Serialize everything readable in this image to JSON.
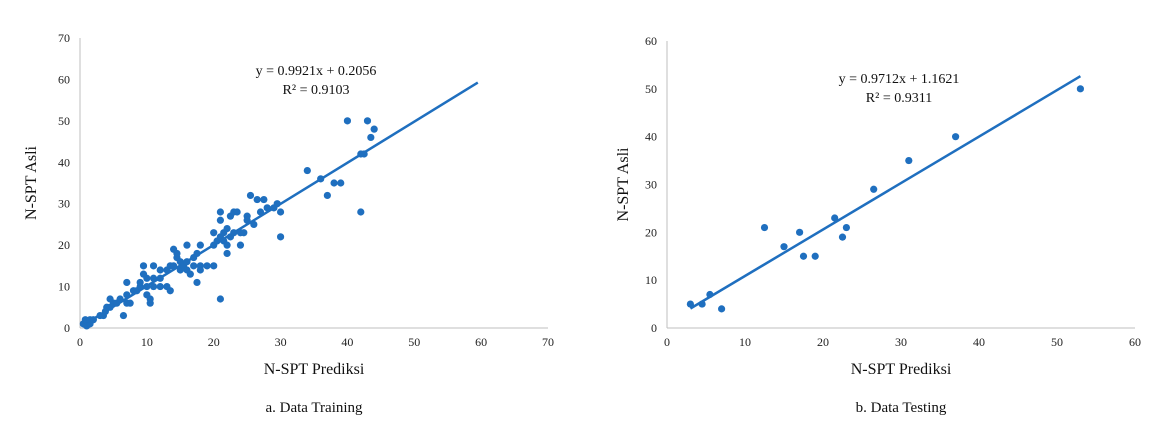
{
  "accent_color": "#1f6fbf",
  "chart_data": [
    {
      "type": "scatter",
      "xlabel": "N-SPT Prediksi",
      "ylabel": "N-SPT Asli",
      "xlim": [
        0,
        70
      ],
      "ylim": [
        0,
        70
      ],
      "xticks": [
        "0",
        "10",
        "20",
        "30",
        "40",
        "50",
        "60",
        "70"
      ],
      "yticks": [
        "0",
        "10",
        "20",
        "30",
        "40",
        "50",
        "60",
        "70"
      ],
      "equation": "y = 0.9921x + 0.2056",
      "r_squared": "R² = 0.9103",
      "caption": "a. Data Training",
      "trendline": {
        "slope": 0.9921,
        "intercept": 0.2056,
        "x_range": [
          0.5,
          59.5
        ]
      },
      "points": [
        [
          0.5,
          1
        ],
        [
          0.8,
          2
        ],
        [
          1,
          0.5
        ],
        [
          1.5,
          1
        ],
        [
          1.5,
          2
        ],
        [
          2,
          2
        ],
        [
          3,
          3
        ],
        [
          3.5,
          3
        ],
        [
          3.8,
          4
        ],
        [
          4,
          5
        ],
        [
          4.5,
          5
        ],
        [
          5,
          6
        ],
        [
          4.5,
          7
        ],
        [
          5.5,
          6
        ],
        [
          6,
          7
        ],
        [
          7,
          6
        ],
        [
          7,
          8
        ],
        [
          6.5,
          3
        ],
        [
          7,
          11
        ],
        [
          7.5,
          6
        ],
        [
          8,
          9
        ],
        [
          8.5,
          9
        ],
        [
          9,
          10
        ],
        [
          9,
          11
        ],
        [
          9.5,
          13
        ],
        [
          9.5,
          15
        ],
        [
          10,
          8
        ],
        [
          10,
          10
        ],
        [
          10,
          12
        ],
        [
          10.5,
          6
        ],
        [
          10.5,
          7
        ],
        [
          11,
          10
        ],
        [
          11,
          12
        ],
        [
          11,
          15
        ],
        [
          12,
          10
        ],
        [
          12,
          12
        ],
        [
          12,
          14
        ],
        [
          13,
          10
        ],
        [
          13,
          14
        ],
        [
          13.5,
          9
        ],
        [
          13.5,
          15
        ],
        [
          14,
          15
        ],
        [
          14,
          19
        ],
        [
          14.5,
          17
        ],
        [
          14.5,
          18
        ],
        [
          15,
          14
        ],
        [
          15,
          16
        ],
        [
          15.5,
          15
        ],
        [
          16,
          14
        ],
        [
          16,
          16
        ],
        [
          16,
          20
        ],
        [
          16.5,
          13
        ],
        [
          17,
          15
        ],
        [
          17,
          17
        ],
        [
          17.5,
          18
        ],
        [
          17.5,
          11
        ],
        [
          18,
          14
        ],
        [
          18,
          15
        ],
        [
          18,
          20
        ],
        [
          19,
          15
        ],
        [
          20,
          15
        ],
        [
          20,
          20
        ],
        [
          20,
          23
        ],
        [
          20.5,
          21
        ],
        [
          21,
          7
        ],
        [
          21,
          22
        ],
        [
          21,
          26
        ],
        [
          21,
          28
        ],
        [
          21.5,
          21
        ],
        [
          21.5,
          23
        ],
        [
          22,
          18
        ],
        [
          22,
          20
        ],
        [
          22,
          24
        ],
        [
          22.5,
          22
        ],
        [
          22.5,
          27
        ],
        [
          23,
          23
        ],
        [
          23,
          28
        ],
        [
          23.5,
          28
        ],
        [
          24,
          20
        ],
        [
          24,
          23
        ],
        [
          24.5,
          23
        ],
        [
          25,
          27
        ],
        [
          25,
          26
        ],
        [
          25.5,
          32
        ],
        [
          26,
          25
        ],
        [
          26.5,
          31
        ],
        [
          27,
          28
        ],
        [
          27.5,
          31
        ],
        [
          28,
          29
        ],
        [
          29,
          29
        ],
        [
          29.5,
          30
        ],
        [
          30,
          28
        ],
        [
          30,
          22
        ],
        [
          34,
          38
        ],
        [
          36,
          36
        ],
        [
          37,
          32
        ],
        [
          38,
          35
        ],
        [
          39,
          35
        ],
        [
          40,
          50
        ],
        [
          42,
          28
        ],
        [
          42,
          42
        ],
        [
          42.5,
          42
        ],
        [
          43,
          50
        ],
        [
          43.5,
          46
        ],
        [
          44,
          48
        ]
      ]
    },
    {
      "type": "scatter",
      "xlabel": "N-SPT Prediksi",
      "ylabel": "N-SPT Asli",
      "xlim": [
        0,
        60
      ],
      "ylim": [
        0,
        60
      ],
      "xticks": [
        "0",
        "10",
        "20",
        "30",
        "40",
        "50",
        "60"
      ],
      "yticks": [
        "0",
        "10",
        "20",
        "30",
        "40",
        "50",
        "60"
      ],
      "equation": "y = 0.9712x + 1.1621",
      "r_squared": "R² = 0.9311",
      "caption": "b. Data Testing",
      "trendline": {
        "slope": 0.9712,
        "intercept": 1.1621,
        "x_range": [
          3,
          53
        ]
      },
      "points": [
        [
          3,
          5
        ],
        [
          4.5,
          5
        ],
        [
          5.5,
          7
        ],
        [
          7,
          4
        ],
        [
          12.5,
          21
        ],
        [
          15,
          17
        ],
        [
          17,
          20
        ],
        [
          17.5,
          15
        ],
        [
          19,
          15
        ],
        [
          21.5,
          23
        ],
        [
          22.5,
          19
        ],
        [
          23,
          21
        ],
        [
          26.5,
          29
        ],
        [
          31,
          35
        ],
        [
          37,
          40
        ],
        [
          53,
          50
        ]
      ]
    }
  ]
}
